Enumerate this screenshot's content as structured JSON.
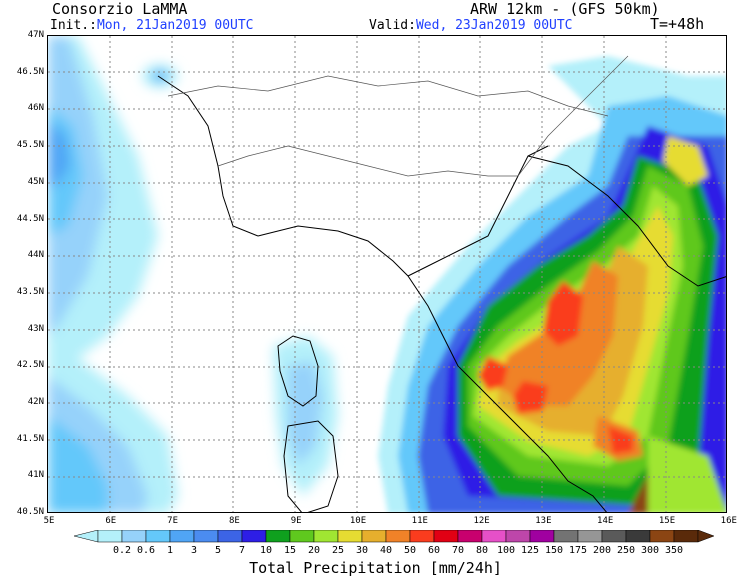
{
  "header": {
    "org": "Consorzio LaMMA",
    "model": "ARW 12km - (GFS 50km)",
    "init_prefix": "Init.:",
    "init_value": "Mon, 21Jan2019 00UTC",
    "valid_prefix": "Valid:",
    "valid_value": "Wed, 23Jan2019 00UTC",
    "lead": "T=+48h"
  },
  "axes": {
    "lat_labels": [
      "47N",
      "46.5N",
      "46N",
      "45.5N",
      "45N",
      "44.5N",
      "44N",
      "43.5N",
      "43N",
      "42.5N",
      "42N",
      "41.5N",
      "41N",
      "40.5N"
    ],
    "lon_labels": [
      "5E",
      "6E",
      "7E",
      "8E",
      "9E",
      "10E",
      "11E",
      "12E",
      "13E",
      "14E",
      "15E",
      "16E"
    ]
  },
  "legend": {
    "title": "Total Precipitation [mm/24h]",
    "values": [
      "0.2",
      "0.6",
      "1",
      "3",
      "5",
      "7",
      "10",
      "15",
      "20",
      "25",
      "30",
      "40",
      "50",
      "60",
      "70",
      "80",
      "100",
      "125",
      "150",
      "175",
      "200",
      "250",
      "300",
      "350"
    ],
    "colors": [
      "#b4f0fa",
      "#96d2fa",
      "#64c8fa",
      "#50a5f5",
      "#4b8cf0",
      "#3c64e6",
      "#2d1ee6",
      "#0fa01e",
      "#5fc81e",
      "#a0e632",
      "#e6dc32",
      "#e6af2d",
      "#f08228",
      "#fa3c1e",
      "#e10014",
      "#c8006e",
      "#e650c8",
      "#be46aa",
      "#a000a0",
      "#737373",
      "#969696",
      "#5a5a5a",
      "#3a3a3a",
      "#8b4513",
      "#5a2a0a"
    ]
  },
  "map": {
    "sea_color": "#ffffff",
    "grid": true
  }
}
